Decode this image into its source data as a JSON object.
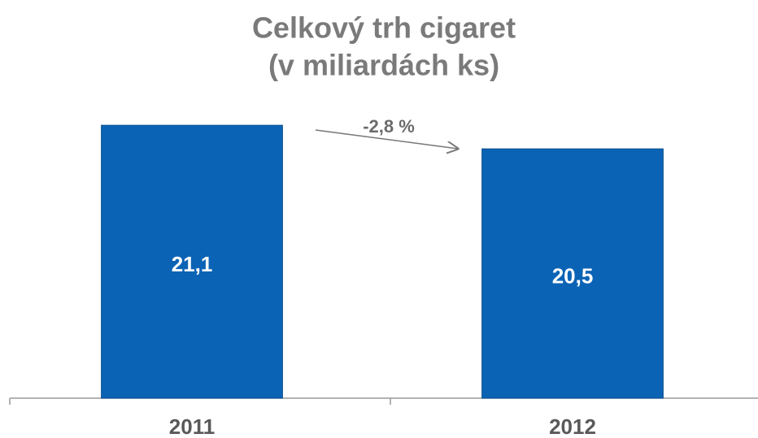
{
  "chart_data": {
    "type": "bar",
    "title": "Celkový trh cigaret",
    "subtitle": "(v miliardách ks)",
    "categories": [
      "2011",
      "2012"
    ],
    "values": [
      21.1,
      20.5
    ],
    "value_labels": [
      "21,1",
      "20,5"
    ],
    "color": "#0b63b5",
    "ylim": [
      14.15,
      21.6
    ],
    "annotation": "-2,8 %"
  }
}
